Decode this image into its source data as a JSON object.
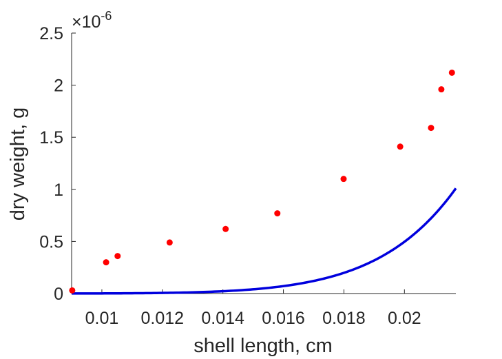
{
  "chart_data": {
    "type": "scatter",
    "xlabel": "shell length, cm",
    "ylabel": "dry weight, g",
    "exponent_label": "×10",
    "exponent_power": "-6",
    "xlim": [
      0.009,
      0.0217
    ],
    "ylim": [
      0,
      2.5
    ],
    "xticks": [
      0.01,
      0.012,
      0.014,
      0.016,
      0.018,
      0.02
    ],
    "xtick_labels": [
      "0.01",
      "0.012",
      "0.014",
      "0.016",
      "0.018",
      "0.02"
    ],
    "yticks": [
      0,
      0.5,
      1,
      1.5,
      2,
      2.5
    ],
    "ytick_labels": [
      "0",
      "0.5",
      "1",
      "1.5",
      "2",
      "2.5"
    ],
    "grid": false,
    "colors": {
      "points": "#ff0000",
      "fit_line": "#0000dd",
      "axis": "#262626"
    },
    "series": [
      {
        "type": "scatter",
        "x": [
          0.00902,
          0.01014,
          0.01052,
          0.01224,
          0.01409,
          0.0158,
          0.01799,
          0.01986,
          0.02088,
          0.02122,
          0.02157
        ],
        "y": [
          0.03,
          0.3,
          0.36,
          0.49,
          0.62,
          0.77,
          1.1,
          1.41,
          1.59,
          1.96,
          2.12
        ]
      },
      {
        "type": "line",
        "model": {
          "form": "a*x^b",
          "a": 300000000000000.0,
          "b": 8.7
        }
      }
    ]
  }
}
